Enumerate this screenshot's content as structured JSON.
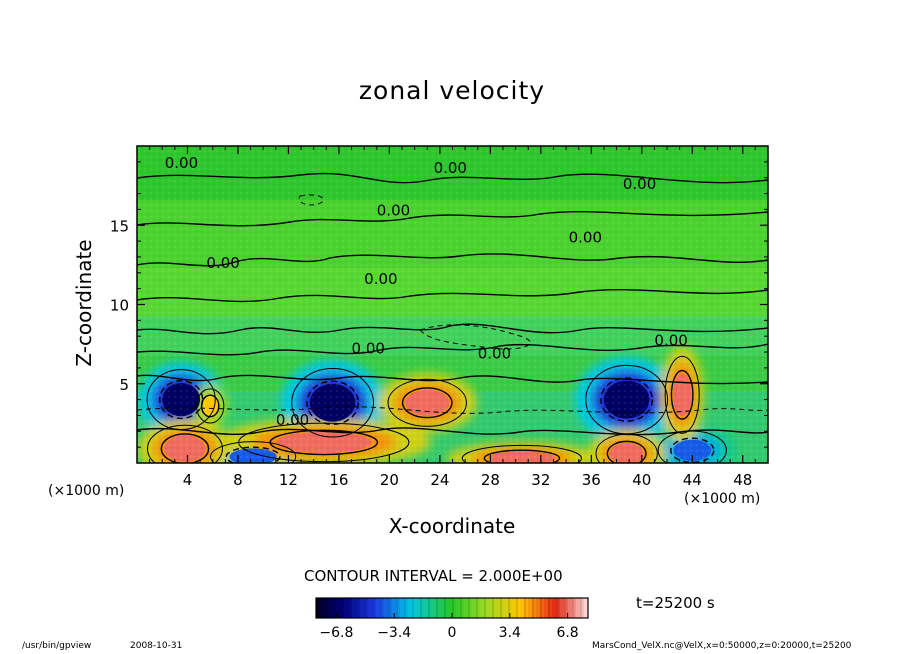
{
  "chart_data": {
    "type": "heatmap",
    "title": "zonal velocity",
    "xlabel": "X-coordinate",
    "ylabel": "Z-coordinate",
    "x_unit_left": "(×1000 m)",
    "x_unit_right": "(×1000 m)",
    "xlim": [
      0,
      50
    ],
    "ylim": [
      0,
      20
    ],
    "x_ticks": [
      4,
      8,
      12,
      16,
      20,
      24,
      28,
      32,
      36,
      40,
      44,
      48
    ],
    "y_ticks": [
      5,
      10,
      15
    ],
    "contour_labels": [
      {
        "text": "0.00",
        "x": 2.2,
        "y": 18.6
      },
      {
        "text": "0.00",
        "x": 23.5,
        "y": 18.3
      },
      {
        "text": "0.00",
        "x": 38.5,
        "y": 17.3
      },
      {
        "text": "0.00",
        "x": 19.0,
        "y": 15.6
      },
      {
        "text": "0.00",
        "x": 34.2,
        "y": 13.9
      },
      {
        "text": "0.00",
        "x": 5.5,
        "y": 12.3
      },
      {
        "text": "0.00",
        "x": 18.0,
        "y": 11.3
      },
      {
        "text": "0.00",
        "x": 17.0,
        "y": 6.9
      },
      {
        "text": "0.00",
        "x": 27.0,
        "y": 6.6
      },
      {
        "text": "0.00",
        "x": 41.0,
        "y": 7.4
      },
      {
        "text": "0.00",
        "x": 11.0,
        "y": 2.4
      }
    ],
    "features": [
      {
        "x": 3.5,
        "y": 4.0,
        "rx": 2.0,
        "ry": 1.4,
        "value": -6.8
      },
      {
        "x": 15.5,
        "y": 3.8,
        "rx": 2.4,
        "ry": 1.6,
        "value": -6.8
      },
      {
        "x": 38.8,
        "y": 4.0,
        "rx": 2.4,
        "ry": 1.6,
        "value": -6.8
      },
      {
        "x": 44.0,
        "y": 0.8,
        "rx": 2.0,
        "ry": 0.9,
        "value": -4.0
      },
      {
        "x": 9.2,
        "y": 0.4,
        "rx": 2.5,
        "ry": 0.7,
        "value": -4.0
      },
      {
        "x": 5.8,
        "y": 3.6,
        "rx": 0.8,
        "ry": 0.8,
        "value": 4.0
      },
      {
        "x": 3.8,
        "y": 0.9,
        "rx": 2.2,
        "ry": 1.1,
        "value": 6.8
      },
      {
        "x": 14.8,
        "y": 1.3,
        "rx": 5.0,
        "ry": 0.9,
        "value": 6.8
      },
      {
        "x": 23.0,
        "y": 3.8,
        "rx": 2.3,
        "ry": 1.1,
        "value": 6.8
      },
      {
        "x": 30.5,
        "y": 0.3,
        "rx": 3.5,
        "ry": 0.6,
        "value": 6.8
      },
      {
        "x": 38.8,
        "y": 0.6,
        "rx": 1.8,
        "ry": 0.9,
        "value": 6.8
      },
      {
        "x": 43.2,
        "y": 4.3,
        "rx": 1.0,
        "ry": 1.8,
        "value": 6.8
      }
    ],
    "colorbar": {
      "min": -8.0,
      "max": 8.0,
      "tick_values": [
        -6.8,
        -3.4,
        0,
        3.4,
        6.8
      ],
      "tick_labels": [
        "−6.8",
        "−3.4",
        "0",
        "3.4",
        "6.8"
      ]
    },
    "contour_interval_text": "CONTOUR INTERVAL = 2.000E+00",
    "time_text": "t=25200 s"
  },
  "footer": {
    "program": "/usr/bin/gpview",
    "date": "2008-10-31",
    "source": "MarsCond_VelX.nc@VelX,x=0:50000,z=0:20000,t=25200"
  }
}
